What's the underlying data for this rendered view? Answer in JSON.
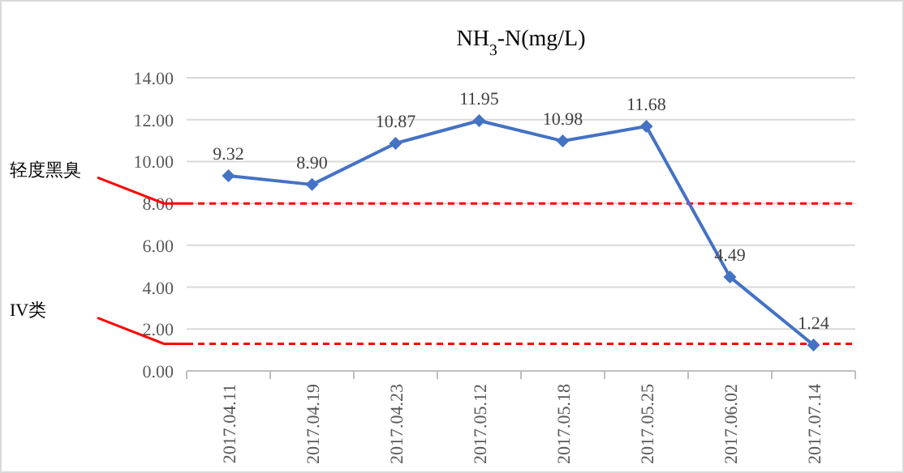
{
  "chart_data": {
    "type": "line",
    "title": "NH$_{3}$-N(mg/L)",
    "categories": [
      "2017.04.11",
      "2017.04.19",
      "2017.04.23",
      "2017.05.12",
      "2017.05.18",
      "2017.05.25",
      "2017.06.02",
      "2017.07.14"
    ],
    "series": [
      {
        "color": "#4472c4",
        "values": [
          9.32,
          8.9,
          10.87,
          11.95,
          10.98,
          11.68,
          4.49,
          1.24
        ],
        "value_labels": [
          "9.32",
          "8.90",
          "10.87",
          "11.95",
          "10.98",
          "11.68",
          "4.49",
          "1.24"
        ]
      }
    ],
    "ylim": [
      0,
      14
    ],
    "yticks": [
      {
        "value": 0,
        "label": "0.00"
      },
      {
        "value": 2,
        "label": "2.00"
      },
      {
        "value": 4,
        "label": "4.00"
      },
      {
        "value": 6,
        "label": "6.00"
      },
      {
        "value": 8,
        "label": "8.00"
      },
      {
        "value": 10,
        "label": "10.00"
      },
      {
        "value": 12,
        "label": "12.00"
      },
      {
        "value": 14,
        "label": "14.00"
      }
    ],
    "ref_lines": [
      {
        "axis": "y",
        "value": 8,
        "label": "轻度黑臭",
        "color": "#ff0000",
        "line_style": "dashed"
      },
      {
        "axis": "y",
        "value": 1.3,
        "label": "IV类",
        "color": "#ff0000",
        "line_style": "dashed"
      }
    ],
    "grid": "y",
    "marker": "diamond",
    "line_style": "solid"
  }
}
